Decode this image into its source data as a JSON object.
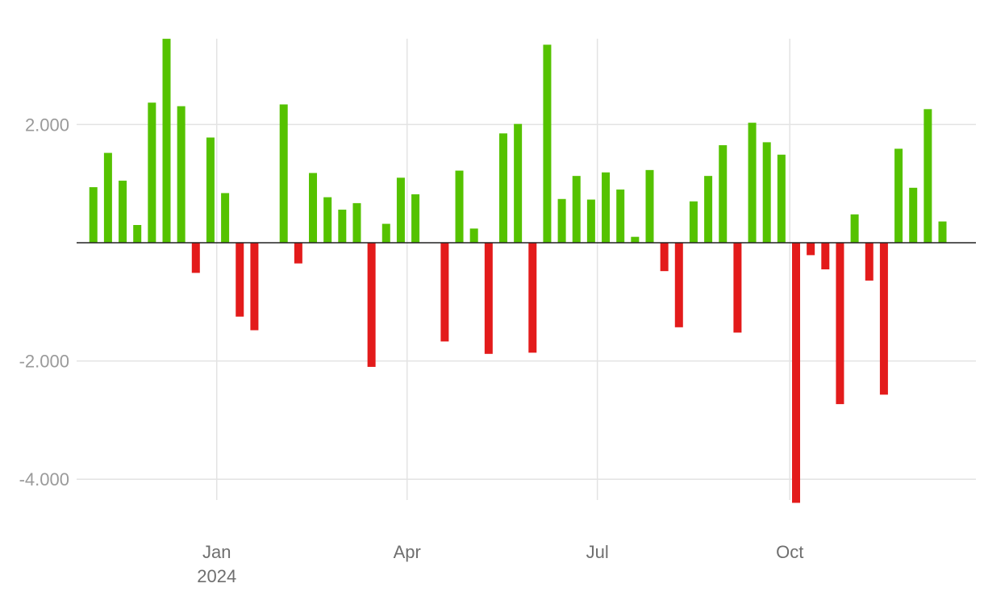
{
  "chart_data": {
    "type": "bar",
    "title": "",
    "xlabel": "",
    "ylabel": "",
    "ylim": [
      -4400,
      3450
    ],
    "grid": true,
    "colors": {
      "positive": "#55c200",
      "negative": "#e31b1b",
      "zero_line": "#222222",
      "grid": "#e3e3e3"
    },
    "y_ticks": [
      {
        "value": 2000,
        "label": "2.000"
      },
      {
        "value": -2000,
        "label": "-2.000"
      },
      {
        "value": -4000,
        "label": "-4.000"
      }
    ],
    "x_ticks": [
      {
        "date": "2024-01-01",
        "label": "Jan",
        "sublabel": "2024"
      },
      {
        "date": "2024-04-01",
        "label": "Apr",
        "sublabel": ""
      },
      {
        "date": "2024-07-01",
        "label": "Jul",
        "sublabel": ""
      },
      {
        "date": "2024-10-01",
        "label": "Oct",
        "sublabel": ""
      }
    ],
    "x_range": [
      "2023-10-26",
      "2024-12-29"
    ],
    "bars": [
      {
        "date": "2023-11-03",
        "value": 940
      },
      {
        "date": "2023-11-10",
        "value": 1520
      },
      {
        "date": "2023-11-17",
        "value": 1050
      },
      {
        "date": "2023-11-24",
        "value": 300
      },
      {
        "date": "2023-12-01",
        "value": 2370
      },
      {
        "date": "2023-12-08",
        "value": 3450
      },
      {
        "date": "2023-12-15",
        "value": 2310
      },
      {
        "date": "2023-12-22",
        "value": -510
      },
      {
        "date": "2023-12-29",
        "value": 1780
      },
      {
        "date": "2024-01-05",
        "value": 840
      },
      {
        "date": "2024-01-12",
        "value": -1250
      },
      {
        "date": "2024-01-19",
        "value": -1480
      },
      {
        "date": "2024-02-02",
        "value": 2340
      },
      {
        "date": "2024-02-09",
        "value": -350
      },
      {
        "date": "2024-02-16",
        "value": 1180
      },
      {
        "date": "2024-02-23",
        "value": 770
      },
      {
        "date": "2024-03-01",
        "value": 560
      },
      {
        "date": "2024-03-08",
        "value": 670
      },
      {
        "date": "2024-03-15",
        "value": -2100
      },
      {
        "date": "2024-03-22",
        "value": 320
      },
      {
        "date": "2024-03-29",
        "value": 1100
      },
      {
        "date": "2024-04-05",
        "value": 820
      },
      {
        "date": "2024-04-19",
        "value": -1670
      },
      {
        "date": "2024-04-26",
        "value": 1220
      },
      {
        "date": "2024-05-03",
        "value": 240
      },
      {
        "date": "2024-05-10",
        "value": -1880
      },
      {
        "date": "2024-05-17",
        "value": 1850
      },
      {
        "date": "2024-05-24",
        "value": 2010
      },
      {
        "date": "2024-05-31",
        "value": -1860
      },
      {
        "date": "2024-06-07",
        "value": 3350
      },
      {
        "date": "2024-06-14",
        "value": 740
      },
      {
        "date": "2024-06-21",
        "value": 1130
      },
      {
        "date": "2024-06-28",
        "value": 730
      },
      {
        "date": "2024-07-05",
        "value": 1190
      },
      {
        "date": "2024-07-12",
        "value": 900
      },
      {
        "date": "2024-07-19",
        "value": 100
      },
      {
        "date": "2024-07-26",
        "value": 1230
      },
      {
        "date": "2024-08-02",
        "value": -480
      },
      {
        "date": "2024-08-09",
        "value": -1430
      },
      {
        "date": "2024-08-16",
        "value": 700
      },
      {
        "date": "2024-08-23",
        "value": 1130
      },
      {
        "date": "2024-08-30",
        "value": 1650
      },
      {
        "date": "2024-09-06",
        "value": -1520
      },
      {
        "date": "2024-09-13",
        "value": 2030
      },
      {
        "date": "2024-09-20",
        "value": 1700
      },
      {
        "date": "2024-09-27",
        "value": 1490
      },
      {
        "date": "2024-10-04",
        "value": -4400
      },
      {
        "date": "2024-10-11",
        "value": -210
      },
      {
        "date": "2024-10-18",
        "value": -450
      },
      {
        "date": "2024-10-25",
        "value": -2730
      },
      {
        "date": "2024-11-01",
        "value": 480
      },
      {
        "date": "2024-11-08",
        "value": -640
      },
      {
        "date": "2024-11-15",
        "value": -2570
      },
      {
        "date": "2024-11-22",
        "value": 1590
      },
      {
        "date": "2024-11-29",
        "value": 930
      },
      {
        "date": "2024-12-06",
        "value": 2260
      },
      {
        "date": "2024-12-13",
        "value": 360
      }
    ]
  }
}
